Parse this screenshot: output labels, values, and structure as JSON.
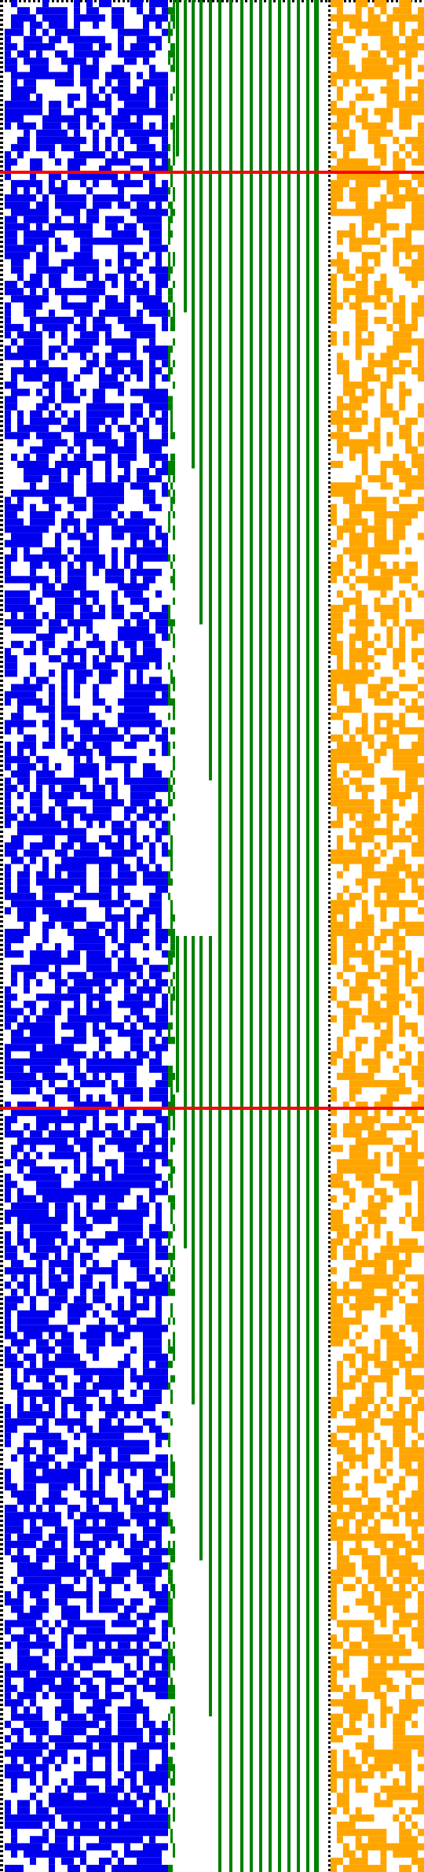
{
  "colors": {
    "blue": "#0000ee",
    "green": "#008000",
    "orange": "#ffa500",
    "marker": "#ff0000",
    "border": "#000000",
    "background": "#ffffff"
  },
  "grid": {
    "rows": 260,
    "blue_cols": 26,
    "orange_cols": 15,
    "blue_fill": 0.55,
    "orange_fill": 0.5
  },
  "markers": {
    "count": 2
  },
  "staircase": {
    "periods": 2,
    "steps_per_period": 18
  }
}
